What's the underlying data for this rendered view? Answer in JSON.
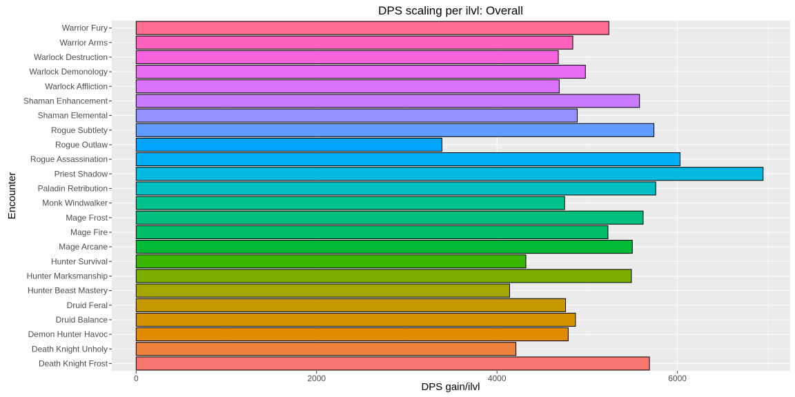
{
  "chart_data": {
    "type": "bar",
    "orientation": "horizontal",
    "title": "DPS scaling per ilvl: Overall",
    "xlabel": "DPS gain/ilvl",
    "ylabel": "Encounter",
    "xlim": [
      -270,
      7250
    ],
    "xticks": [
      0,
      2000,
      4000,
      6000
    ],
    "grid": true,
    "legend": "none",
    "categories": [
      "Death Knight Frost",
      "Death Knight Unholy",
      "Demon Hunter Havoc",
      "Druid Balance",
      "Druid Feral",
      "Hunter Beast Mastery",
      "Hunter Marksmanship",
      "Hunter Survival",
      "Mage Arcane",
      "Mage Fire",
      "Mage Frost",
      "Monk Windwalker",
      "Paladin Retribution",
      "Priest Shadow",
      "Rogue Assassination",
      "Rogue Outlaw",
      "Rogue Subtlety",
      "Shaman Elemental",
      "Shaman Enhancement",
      "Warlock Affliction",
      "Warlock Demonology",
      "Warlock Destruction",
      "Warrior Arms",
      "Warrior Fury"
    ],
    "values": [
      5690,
      4210,
      4790,
      4870,
      4760,
      4140,
      5490,
      4320,
      5500,
      5230,
      5620,
      4750,
      5760,
      6950,
      6030,
      3390,
      5740,
      4890,
      5580,
      4690,
      4980,
      4680,
      4840,
      5240
    ],
    "colors": [
      "#F8766D",
      "#EC823C",
      "#E08B00",
      "#D39200",
      "#C49A00",
      "#A3A500",
      "#7CAE00",
      "#39B600",
      "#00BA38",
      "#00BE67",
      "#00BF7D",
      "#00C08B",
      "#00BFC4",
      "#00BAE0",
      "#00B0F6",
      "#00A5FF",
      "#619CFF",
      "#9590FF",
      "#C77CFF",
      "#DB72FB",
      "#E76BF3",
      "#F962DD",
      "#FF62BC",
      "#FF6C91"
    ]
  }
}
